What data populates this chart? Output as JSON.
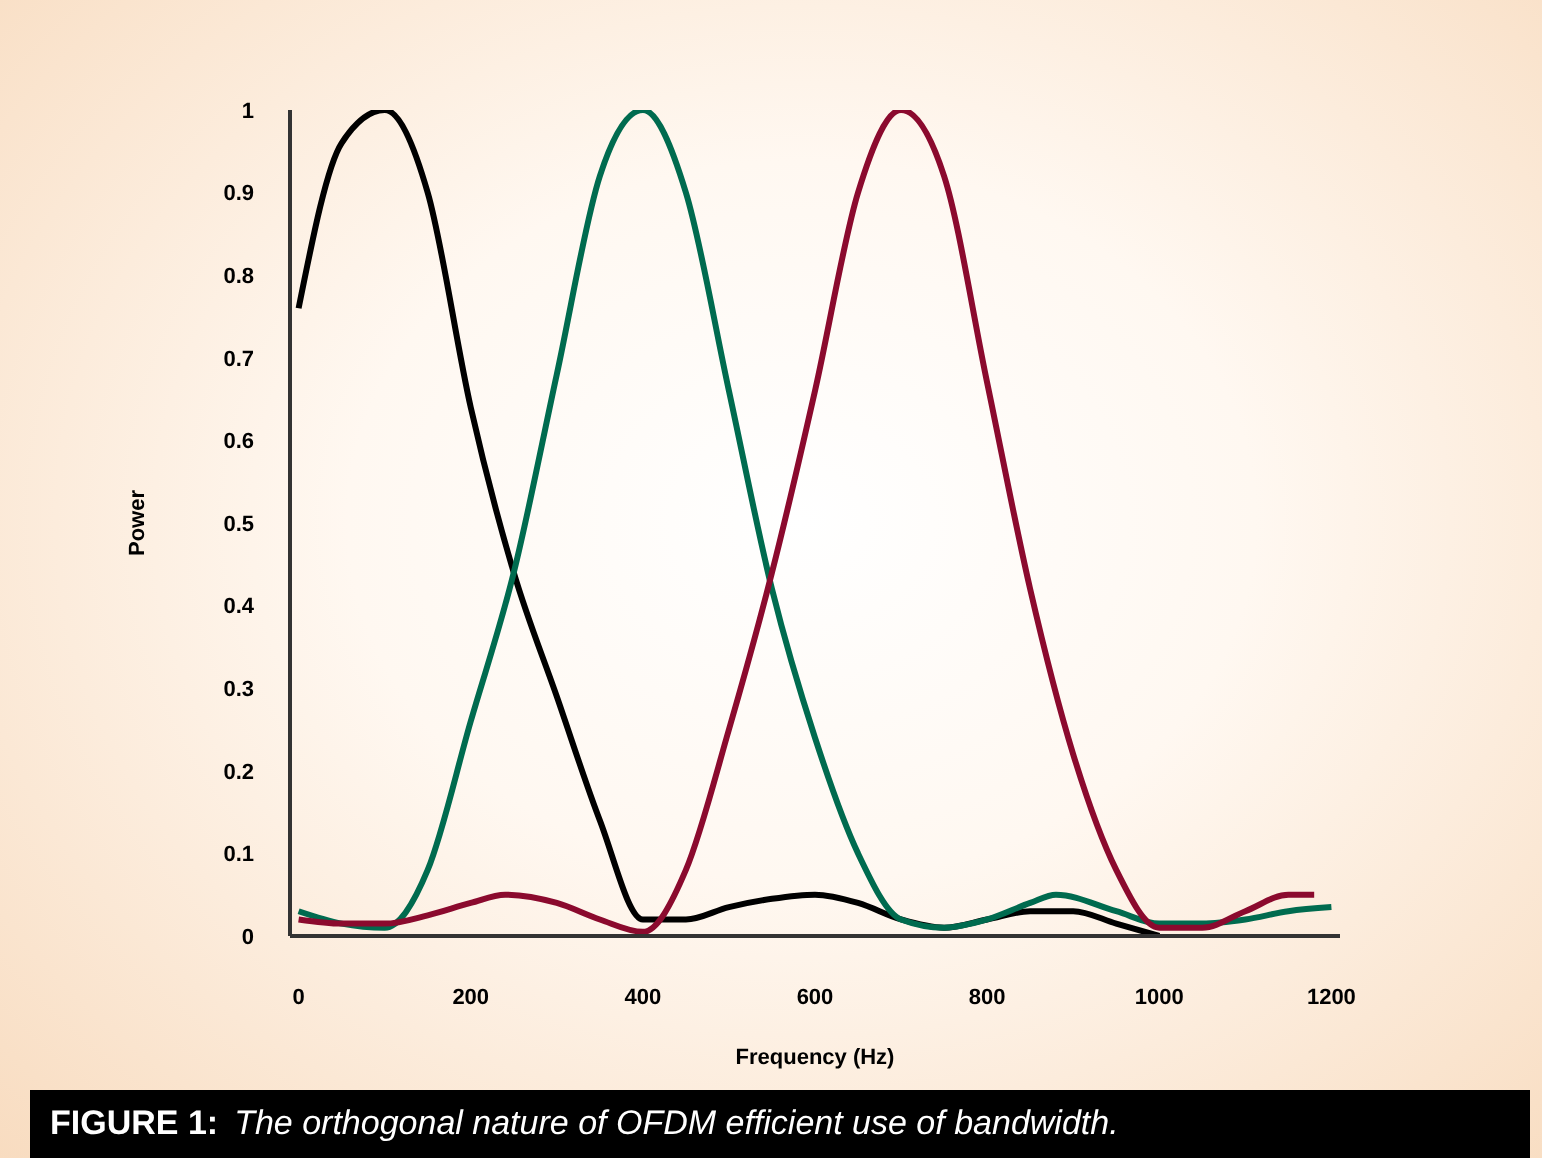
{
  "chart_data": {
    "type": "line",
    "xlabel": "Frequency (Hz)",
    "ylabel": "Power",
    "annotations": [
      "FIGURE 1:",
      "The orthogonal nature of OFDM efficient use of bandwidth."
    ],
    "xlim": [
      -10,
      1210
    ],
    "xticks": [
      0,
      200,
      400,
      600,
      800,
      1000,
      1200
    ],
    "ylim": [
      0,
      1
    ],
    "yticks": [
      0,
      0.1,
      0.2,
      0.3,
      0.4,
      0.5,
      0.6,
      0.7,
      0.8,
      0.9,
      1
    ],
    "grid": false,
    "legend": false,
    "marker": "none",
    "line_style": "solid",
    "series": [
      {
        "color": "#000000",
        "x": [
          0,
          50,
          100,
          150,
          200,
          250,
          300,
          350,
          400,
          450,
          500,
          550,
          600,
          650,
          700,
          750,
          800,
          850,
          900,
          950,
          1000
        ],
        "values": [
          0.76,
          0.96,
          1,
          0.9,
          0.64,
          0.44,
          0.29,
          0.14,
          0.02,
          0.02,
          0.035,
          0.045,
          0.05,
          0.04,
          0.02,
          0.01,
          0.02,
          0.03,
          0.03,
          0.015,
          0
        ]
      },
      {
        "color": "#006b4f",
        "x": [
          0,
          50,
          100,
          150,
          200,
          250,
          300,
          350,
          400,
          450,
          500,
          550,
          600,
          650,
          700,
          750,
          800,
          850,
          880,
          950,
          1000,
          1050,
          1100,
          1150,
          1200
        ],
        "values": [
          0.03,
          0.015,
          0.01,
          0.08,
          0.26,
          0.44,
          0.68,
          0.92,
          1,
          0.9,
          0.66,
          0.42,
          0.24,
          0.1,
          0.02,
          0.01,
          0.02,
          0.04,
          0.05,
          0.03,
          0.015,
          0.015,
          0.02,
          0.03,
          0.035
        ]
      },
      {
        "color": "#8b0a2e",
        "x": [
          0,
          50,
          100,
          150,
          200,
          240,
          300,
          350,
          400,
          450,
          500,
          550,
          600,
          650,
          700,
          750,
          800,
          850,
          900,
          950,
          1000,
          1050,
          1100,
          1150,
          1180
        ],
        "values": [
          0.02,
          0.015,
          0.015,
          0.025,
          0.04,
          0.05,
          0.04,
          0.02,
          0.005,
          0.08,
          0.25,
          0.44,
          0.66,
          0.9,
          1,
          0.92,
          0.67,
          0.42,
          0.22,
          0.08,
          0.01,
          0.01,
          0.03,
          0.05,
          0.05
        ]
      }
    ]
  }
}
